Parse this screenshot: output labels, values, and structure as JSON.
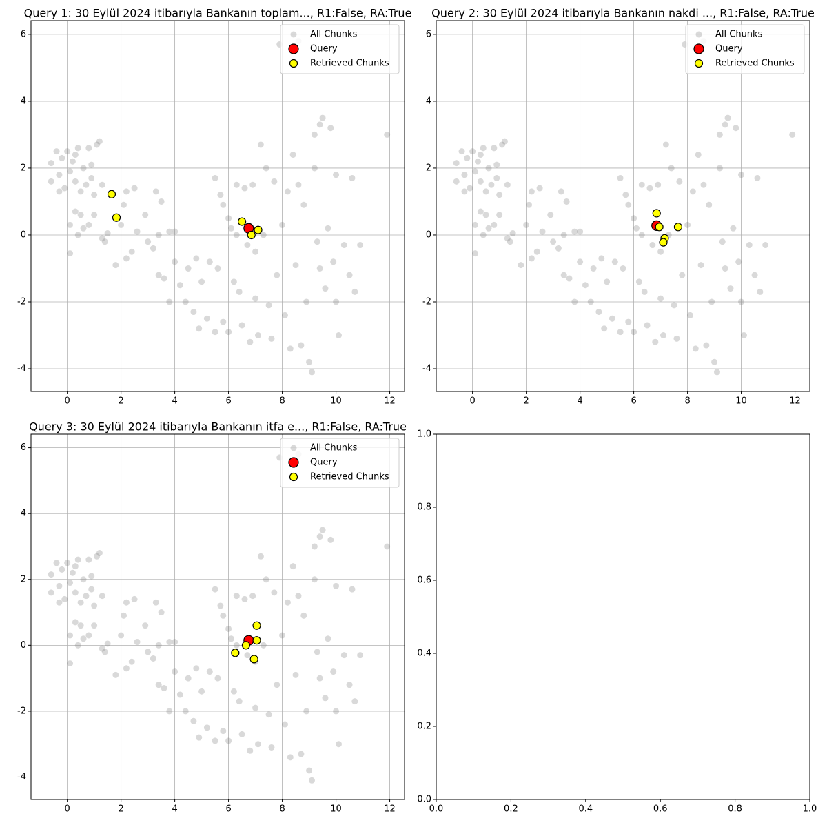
{
  "chart_data": [
    {
      "type": "scatter",
      "title": "Query 1: 30 Eylül 2024 itibarıyla Bankanın toplam..., R1:False, RA:True",
      "xlim": [
        -1.35,
        12.55
      ],
      "ylim": [
        -4.68,
        6.41
      ],
      "xticks": [
        0,
        2,
        4,
        6,
        8,
        10,
        12
      ],
      "yticks": [
        -4,
        -2,
        0,
        2,
        4,
        6
      ],
      "grid": true,
      "legend": "upper-right",
      "series": [
        {
          "name": "All Chunks",
          "color": "#808080",
          "x": [
            -0.6,
            -0.6,
            -0.4,
            -0.3,
            -0.2,
            -0.1,
            0,
            0.1,
            0.2,
            0.3,
            0.4,
            0.5,
            0.6,
            0.7,
            0.8,
            0.9,
            1.1,
            1.2,
            0.9,
            1.3,
            1.0,
            -0.3,
            0.3,
            0.1,
            0.1,
            0.3,
            0.4,
            0.5,
            0.6,
            0.8,
            1.0,
            1.3,
            1.4,
            1.5,
            1.8,
            2.0,
            2.1,
            2.2,
            2.2,
            2.4,
            2.5,
            2.6,
            2.9,
            3.0,
            3.2,
            3.3,
            3.4,
            3.5,
            3.4,
            3.6,
            3.8,
            3.8,
            4.0,
            4.0,
            4.2,
            4.4,
            4.5,
            4.7,
            4.8,
            4.9,
            5.0,
            5.2,
            5.3,
            5.5,
            5.5,
            5.6,
            5.7,
            5.8,
            5.8,
            6.0,
            6.0,
            6.2,
            6.3,
            6.4,
            6.5,
            6.6,
            6.7,
            6.8,
            6.9,
            7.0,
            7.0,
            7.1,
            7.2,
            7.3,
            7.4,
            7.5,
            7.6,
            7.7,
            7.8,
            7.9,
            8.0,
            8.1,
            8.2,
            8.3,
            8.4,
            8.5,
            8.6,
            8.7,
            8.8,
            8.9,
            9.0,
            9.1,
            9.2,
            9.2,
            9.3,
            9.4,
            9.4,
            9.5,
            9.6,
            9.7,
            9.8,
            9.9,
            10.0,
            10.0,
            10.1,
            10.3,
            10.5,
            10.6,
            10.7,
            10.9,
            11.9,
            8.6,
            6.1,
            6.3
          ],
          "values": [
            1.6,
            2.15,
            2.5,
            1.8,
            2.3,
            1.4,
            2.5,
            1.9,
            2.2,
            1.6,
            2.6,
            1.3,
            2.0,
            1.5,
            2.6,
            2.1,
            2.7,
            2.8,
            1.7,
            1.5,
            1.2,
            1.3,
            2.4,
            -0.55,
            0.3,
            0.7,
            0.0,
            0.6,
            0.2,
            0.3,
            0.6,
            -0.1,
            -0.2,
            0.05,
            -0.9,
            0.3,
            0.9,
            1.3,
            -0.7,
            -0.5,
            1.4,
            0.1,
            0.6,
            -0.2,
            -0.4,
            1.3,
            0.0,
            1.0,
            -1.2,
            -1.3,
            -2.0,
            0.1,
            -0.8,
            0.1,
            -1.5,
            -2.0,
            -1.0,
            -2.3,
            -0.7,
            -2.8,
            -1.4,
            -2.5,
            -0.8,
            -2.9,
            1.7,
            -1.0,
            1.2,
            0.9,
            -2.6,
            0.5,
            -2.9,
            -1.4,
            1.5,
            -1.7,
            -2.7,
            1.4,
            -0.3,
            -3.2,
            1.5,
            -1.9,
            -0.5,
            -3.0,
            2.7,
            0.0,
            2.0,
            -2.1,
            -3.1,
            1.6,
            -1.2,
            5.7,
            0.3,
            -2.4,
            1.3,
            -3.4,
            2.4,
            -0.9,
            1.5,
            -3.3,
            0.9,
            -2.0,
            -3.8,
            -4.1,
            2.0,
            3.0,
            -0.2,
            -1.0,
            3.3,
            3.5,
            -1.6,
            0.2,
            3.2,
            -0.8,
            1.8,
            -2.0,
            -3.0,
            -0.3,
            -1.2,
            1.7,
            -1.7,
            -0.3,
            3.0,
            5.8,
            0.2,
            0.0
          ]
        },
        {
          "name": "Query",
          "color": "#ff0000",
          "x": [
            6.75
          ],
          "values": [
            0.2
          ]
        },
        {
          "name": "Retrieved Chunks",
          "color": "#ffff00",
          "x": [
            1.65,
            1.83,
            6.5,
            7.1,
            6.85
          ],
          "values": [
            1.22,
            0.52,
            0.4,
            0.15,
            0.0
          ]
        }
      ]
    },
    {
      "type": "scatter",
      "title": "Query 2: 30 Eylül 2024 itibarıyla Bankanın nakdi ..., R1:False, RA:True",
      "xlim": [
        -1.35,
        12.55
      ],
      "ylim": [
        -4.68,
        6.41
      ],
      "xticks": [
        0,
        2,
        4,
        6,
        8,
        10,
        12
      ],
      "yticks": [
        -4,
        -2,
        0,
        2,
        4,
        6
      ],
      "grid": true,
      "legend": "upper-right",
      "series": [
        {
          "name": "All Chunks",
          "color": "#808080",
          "x": [
            -0.6,
            -0.6,
            -0.4,
            -0.3,
            -0.2,
            -0.1,
            0,
            0.1,
            0.2,
            0.3,
            0.4,
            0.5,
            0.6,
            0.7,
            0.8,
            0.9,
            1.1,
            1.2,
            0.9,
            1.3,
            1.0,
            -0.3,
            0.3,
            0.1,
            0.1,
            0.3,
            0.4,
            0.5,
            0.6,
            0.8,
            1.0,
            1.3,
            1.4,
            1.5,
            1.8,
            2.0,
            2.1,
            2.2,
            2.2,
            2.4,
            2.5,
            2.6,
            2.9,
            3.0,
            3.2,
            3.3,
            3.4,
            3.5,
            3.4,
            3.6,
            3.8,
            3.8,
            4.0,
            4.0,
            4.2,
            4.4,
            4.5,
            4.7,
            4.8,
            4.9,
            5.0,
            5.2,
            5.3,
            5.5,
            5.5,
            5.6,
            5.7,
            5.8,
            5.8,
            6.0,
            6.0,
            6.2,
            6.3,
            6.4,
            6.5,
            6.6,
            6.7,
            6.8,
            6.9,
            7.0,
            7.0,
            7.1,
            7.2,
            7.3,
            7.4,
            7.5,
            7.6,
            7.7,
            7.8,
            7.9,
            8.0,
            8.1,
            8.2,
            8.3,
            8.4,
            8.5,
            8.6,
            8.7,
            8.8,
            8.9,
            9.0,
            9.1,
            9.2,
            9.2,
            9.3,
            9.4,
            9.4,
            9.5,
            9.6,
            9.7,
            9.8,
            9.9,
            10.0,
            10.0,
            10.1,
            10.3,
            10.5,
            10.6,
            10.7,
            10.9,
            11.9,
            8.6,
            6.1,
            6.3
          ],
          "values": [
            1.6,
            2.15,
            2.5,
            1.8,
            2.3,
            1.4,
            2.5,
            1.9,
            2.2,
            1.6,
            2.6,
            1.3,
            2.0,
            1.5,
            2.6,
            2.1,
            2.7,
            2.8,
            1.7,
            1.5,
            1.2,
            1.3,
            2.4,
            -0.55,
            0.3,
            0.7,
            0.0,
            0.6,
            0.2,
            0.3,
            0.6,
            -0.1,
            -0.2,
            0.05,
            -0.9,
            0.3,
            0.9,
            1.3,
            -0.7,
            -0.5,
            1.4,
            0.1,
            0.6,
            -0.2,
            -0.4,
            1.3,
            0.0,
            1.0,
            -1.2,
            -1.3,
            -2.0,
            0.1,
            -0.8,
            0.1,
            -1.5,
            -2.0,
            -1.0,
            -2.3,
            -0.7,
            -2.8,
            -1.4,
            -2.5,
            -0.8,
            -2.9,
            1.7,
            -1.0,
            1.2,
            0.9,
            -2.6,
            0.5,
            -2.9,
            -1.4,
            1.5,
            -1.7,
            -2.7,
            1.4,
            -0.3,
            -3.2,
            1.5,
            -1.9,
            -0.5,
            -3.0,
            2.7,
            0.0,
            2.0,
            -2.1,
            -3.1,
            1.6,
            -1.2,
            5.7,
            0.3,
            -2.4,
            1.3,
            -3.4,
            2.4,
            -0.9,
            1.5,
            -3.3,
            0.9,
            -2.0,
            -3.8,
            -4.1,
            2.0,
            3.0,
            -0.2,
            -1.0,
            3.3,
            3.5,
            -1.6,
            0.2,
            3.2,
            -0.8,
            1.8,
            -2.0,
            -3.0,
            -0.3,
            -1.2,
            1.7,
            -1.7,
            -0.3,
            3.0,
            5.8,
            0.2,
            0.0
          ]
        },
        {
          "name": "Query",
          "color": "#ff0000",
          "x": [
            6.85
          ],
          "values": [
            0.28
          ]
        },
        {
          "name": "Retrieved Chunks",
          "color": "#ffff00",
          "x": [
            6.85,
            6.95,
            7.65,
            7.15,
            7.1
          ],
          "values": [
            0.65,
            0.24,
            0.24,
            -0.1,
            -0.22
          ]
        }
      ]
    },
    {
      "type": "scatter",
      "title": "Query 3: 30 Eylül 2024 itibarıyla Bankanın itfa e..., R1:False, RA:True",
      "xlim": [
        -1.35,
        12.55
      ],
      "ylim": [
        -4.68,
        6.41
      ],
      "xticks": [
        0,
        2,
        4,
        6,
        8,
        10,
        12
      ],
      "yticks": [
        -4,
        -2,
        0,
        2,
        4,
        6
      ],
      "grid": true,
      "legend": "upper-right",
      "series": [
        {
          "name": "All Chunks",
          "color": "#808080",
          "x": [
            -0.6,
            -0.6,
            -0.4,
            -0.3,
            -0.2,
            -0.1,
            0,
            0.1,
            0.2,
            0.3,
            0.4,
            0.5,
            0.6,
            0.7,
            0.8,
            0.9,
            1.1,
            1.2,
            0.9,
            1.3,
            1.0,
            -0.3,
            0.3,
            0.1,
            0.1,
            0.3,
            0.4,
            0.5,
            0.6,
            0.8,
            1.0,
            1.3,
            1.4,
            1.5,
            1.8,
            2.0,
            2.1,
            2.2,
            2.2,
            2.4,
            2.5,
            2.6,
            2.9,
            3.0,
            3.2,
            3.3,
            3.4,
            3.5,
            3.4,
            3.6,
            3.8,
            3.8,
            4.0,
            4.0,
            4.2,
            4.4,
            4.5,
            4.7,
            4.8,
            4.9,
            5.0,
            5.2,
            5.3,
            5.5,
            5.5,
            5.6,
            5.7,
            5.8,
            5.8,
            6.0,
            6.0,
            6.2,
            6.3,
            6.4,
            6.5,
            6.6,
            6.7,
            6.8,
            6.9,
            7.0,
            7.0,
            7.1,
            7.2,
            7.3,
            7.4,
            7.5,
            7.6,
            7.7,
            7.8,
            7.9,
            8.0,
            8.1,
            8.2,
            8.3,
            8.4,
            8.5,
            8.6,
            8.7,
            8.8,
            8.9,
            9.0,
            9.1,
            9.2,
            9.2,
            9.3,
            9.4,
            9.4,
            9.5,
            9.6,
            9.7,
            9.8,
            9.9,
            10.0,
            10.0,
            10.1,
            10.3,
            10.5,
            10.6,
            10.7,
            10.9,
            11.9,
            8.6,
            6.1,
            6.3
          ],
          "values": [
            1.6,
            2.15,
            2.5,
            1.8,
            2.3,
            1.4,
            2.5,
            1.9,
            2.2,
            1.6,
            2.6,
            1.3,
            2.0,
            1.5,
            2.6,
            2.1,
            2.7,
            2.8,
            1.7,
            1.5,
            1.2,
            1.3,
            2.4,
            -0.55,
            0.3,
            0.7,
            0.0,
            0.6,
            0.2,
            0.3,
            0.6,
            -0.1,
            -0.2,
            0.05,
            -0.9,
            0.3,
            0.9,
            1.3,
            -0.7,
            -0.5,
            1.4,
            0.1,
            0.6,
            -0.2,
            -0.4,
            1.3,
            0.0,
            1.0,
            -1.2,
            -1.3,
            -2.0,
            0.1,
            -0.8,
            0.1,
            -1.5,
            -2.0,
            -1.0,
            -2.3,
            -0.7,
            -2.8,
            -1.4,
            -2.5,
            -0.8,
            -2.9,
            1.7,
            -1.0,
            1.2,
            0.9,
            -2.6,
            0.5,
            -2.9,
            -1.4,
            1.5,
            -1.7,
            -2.7,
            1.4,
            -0.3,
            -3.2,
            1.5,
            -1.9,
            -0.5,
            -3.0,
            2.7,
            0.0,
            2.0,
            -2.1,
            -3.1,
            1.6,
            -1.2,
            5.7,
            0.3,
            -2.4,
            1.3,
            -3.4,
            2.4,
            -0.9,
            1.5,
            -3.3,
            0.9,
            -2.0,
            -3.8,
            -4.1,
            2.0,
            3.0,
            -0.2,
            -1.0,
            3.3,
            3.5,
            -1.6,
            0.2,
            3.2,
            -0.8,
            1.8,
            -2.0,
            -3.0,
            -0.3,
            -1.2,
            1.7,
            -1.7,
            -0.3,
            3.0,
            5.8,
            0.2,
            0.0
          ]
        },
        {
          "name": "Query",
          "color": "#ff0000",
          "x": [
            6.75
          ],
          "values": [
            0.15
          ]
        },
        {
          "name": "Retrieved Chunks",
          "color": "#ffff00",
          "x": [
            7.05,
            7.05,
            6.65,
            6.25,
            6.95
          ],
          "values": [
            0.6,
            0.15,
            0.0,
            -0.23,
            -0.42
          ]
        }
      ]
    },
    {
      "type": "scatter",
      "xlim": [
        0,
        1
      ],
      "ylim": [
        0,
        1
      ],
      "xticks": [
        {
          "value": 0,
          "label": "0.0"
        },
        0.2,
        0.4,
        0.6,
        0.8,
        {
          "value": 1,
          "label": "1.0"
        }
      ],
      "yticks": [
        {
          "value": 0,
          "label": "0.0"
        },
        0.2,
        0.4,
        0.6,
        0.8,
        {
          "value": 1,
          "label": "1.0"
        }
      ],
      "grid": false
    }
  ]
}
